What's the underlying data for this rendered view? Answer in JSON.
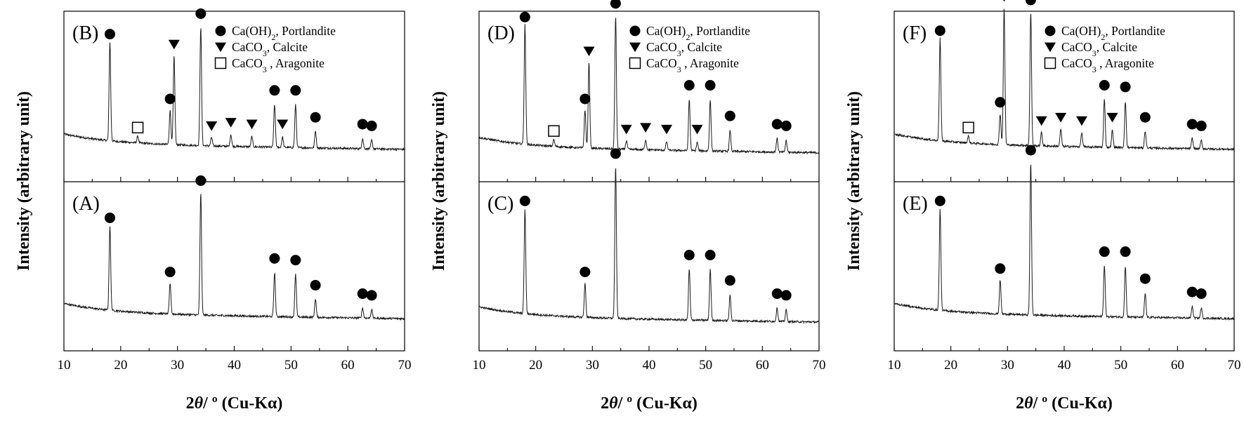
{
  "chart_data": [
    {
      "type": "line",
      "xlabel": "2θ/ º (Cu-Kα)",
      "ylabel": "Intensity (arbitrary unit)",
      "xlim": [
        10,
        70
      ],
      "x_ticks": [
        10,
        20,
        30,
        40,
        50,
        60,
        70
      ],
      "subplots": [
        {
          "label": "(B)",
          "legend": [
            {
              "marker": "circle",
              "text": "Ca(OH)",
              "sub": "2",
              "tail": ", Portlandite"
            },
            {
              "marker": "triangle",
              "text": "CaCO",
              "sub": "3",
              "tail": ", Calcite"
            },
            {
              "marker": "square",
              "text": "CaCO",
              "sub": "3",
              "tail": " , Aragonite"
            }
          ],
          "baseline": 0.22,
          "peaks": [
            {
              "x": 18.1,
              "h": 0.58,
              "phase": "portlandite"
            },
            {
              "x": 23.0,
              "h": 0.04,
              "phase": "aragonite"
            },
            {
              "x": 28.7,
              "h": 0.2,
              "phase": "portlandite"
            },
            {
              "x": 29.4,
              "h": 0.52,
              "phase": "calcite"
            },
            {
              "x": 34.1,
              "h": 0.7,
              "phase": "portlandite"
            },
            {
              "x": 36.0,
              "h": 0.05,
              "phase": "calcite"
            },
            {
              "x": 39.4,
              "h": 0.07,
              "phase": "calcite"
            },
            {
              "x": 43.1,
              "h": 0.06,
              "phase": "calcite"
            },
            {
              "x": 47.1,
              "h": 0.25,
              "phase": "portlandite"
            },
            {
              "x": 48.5,
              "h": 0.06,
              "phase": "calcite"
            },
            {
              "x": 50.8,
              "h": 0.25,
              "phase": "portlandite"
            },
            {
              "x": 54.3,
              "h": 0.1,
              "phase": "portlandite"
            },
            {
              "x": 62.6,
              "h": 0.06,
              "phase": "portlandite"
            },
            {
              "x": 64.2,
              "h": 0.05,
              "phase": "portlandite"
            }
          ]
        },
        {
          "label": "(A)",
          "legend": [],
          "baseline": 0.22,
          "peaks": [
            {
              "x": 18.1,
              "h": 0.5,
              "phase": "portlandite"
            },
            {
              "x": 28.7,
              "h": 0.18,
              "phase": "portlandite"
            },
            {
              "x": 34.1,
              "h": 0.72,
              "phase": "portlandite"
            },
            {
              "x": 47.1,
              "h": 0.26,
              "phase": "portlandite"
            },
            {
              "x": 50.8,
              "h": 0.25,
              "phase": "portlandite"
            },
            {
              "x": 54.3,
              "h": 0.11,
              "phase": "portlandite"
            },
            {
              "x": 62.6,
              "h": 0.06,
              "phase": "portlandite"
            },
            {
              "x": 64.2,
              "h": 0.05,
              "phase": "portlandite"
            }
          ]
        }
      ]
    },
    {
      "type": "line",
      "xlabel": "2θ/ º (Cu-Kα)",
      "ylabel": "Intensity (arbitrary unit)",
      "xlim": [
        10,
        70
      ],
      "x_ticks": [
        10,
        20,
        30,
        40,
        50,
        60,
        70
      ],
      "subplots": [
        {
          "label": "(D)",
          "legend": [
            {
              "marker": "circle",
              "text": "Ca(OH)",
              "sub": "2",
              "tail": ", Portlandite"
            },
            {
              "marker": "triangle",
              "text": "CaCO",
              "sub": "3",
              "tail": ", Calcite"
            },
            {
              "marker": "square",
              "text": "CaCO",
              "sub": "3",
              "tail": " , Aragonite"
            }
          ],
          "baseline": 0.2,
          "peaks": [
            {
              "x": 18.1,
              "h": 0.7,
              "phase": "portlandite"
            },
            {
              "x": 23.2,
              "h": 0.04,
              "phase": "aragonite"
            },
            {
              "x": 28.7,
              "h": 0.22,
              "phase": "portlandite"
            },
            {
              "x": 29.4,
              "h": 0.5,
              "phase": "calcite"
            },
            {
              "x": 34.1,
              "h": 0.78,
              "phase": "portlandite"
            },
            {
              "x": 36.0,
              "h": 0.05,
              "phase": "calcite"
            },
            {
              "x": 39.4,
              "h": 0.06,
              "phase": "calcite"
            },
            {
              "x": 43.1,
              "h": 0.05,
              "phase": "calcite"
            },
            {
              "x": 47.1,
              "h": 0.3,
              "phase": "portlandite"
            },
            {
              "x": 48.5,
              "h": 0.05,
              "phase": "calcite"
            },
            {
              "x": 50.8,
              "h": 0.3,
              "phase": "portlandite"
            },
            {
              "x": 54.3,
              "h": 0.12,
              "phase": "portlandite"
            },
            {
              "x": 62.6,
              "h": 0.08,
              "phase": "portlandite"
            },
            {
              "x": 64.2,
              "h": 0.07,
              "phase": "portlandite"
            }
          ]
        },
        {
          "label": "(C)",
          "legend": [],
          "baseline": 0.2,
          "peaks": [
            {
              "x": 18.1,
              "h": 0.62,
              "phase": "portlandite"
            },
            {
              "x": 28.7,
              "h": 0.2,
              "phase": "portlandite"
            },
            {
              "x": 34.1,
              "h": 0.9,
              "phase": "portlandite"
            },
            {
              "x": 47.1,
              "h": 0.3,
              "phase": "portlandite"
            },
            {
              "x": 50.8,
              "h": 0.3,
              "phase": "portlandite"
            },
            {
              "x": 54.3,
              "h": 0.15,
              "phase": "portlandite"
            },
            {
              "x": 62.6,
              "h": 0.08,
              "phase": "portlandite"
            },
            {
              "x": 64.2,
              "h": 0.07,
              "phase": "portlandite"
            }
          ]
        }
      ]
    },
    {
      "type": "line",
      "xlabel": "2θ/ º (Cu-Kα)",
      "ylabel": "Intensity (arbitrary unit)",
      "xlim": [
        10,
        70
      ],
      "x_ticks": [
        10,
        20,
        30,
        40,
        50,
        60,
        70
      ],
      "subplots": [
        {
          "label": "(F)",
          "legend": [
            {
              "marker": "circle",
              "text": "Ca(OH)",
              "sub": "2",
              "tail": ", Portlandite"
            },
            {
              "marker": "triangle",
              "text": "CaCO",
              "sub": "3",
              "tail": ", Calcite"
            },
            {
              "marker": "square",
              "text": "CaCO",
              "sub": "3",
              "tail": " , Aragonite"
            }
          ],
          "baseline": 0.22,
          "peaks": [
            {
              "x": 18.1,
              "h": 0.6,
              "phase": "portlandite"
            },
            {
              "x": 23.1,
              "h": 0.04,
              "phase": "aragonite"
            },
            {
              "x": 28.7,
              "h": 0.18,
              "phase": "portlandite"
            },
            {
              "x": 29.4,
              "h": 0.8,
              "phase": "calcite"
            },
            {
              "x": 34.1,
              "h": 0.78,
              "phase": "portlandite"
            },
            {
              "x": 36.0,
              "h": 0.08,
              "phase": "calcite"
            },
            {
              "x": 39.4,
              "h": 0.1,
              "phase": "calcite"
            },
            {
              "x": 43.1,
              "h": 0.08,
              "phase": "calcite"
            },
            {
              "x": 47.1,
              "h": 0.28,
              "phase": "portlandite"
            },
            {
              "x": 48.5,
              "h": 0.1,
              "phase": "calcite"
            },
            {
              "x": 50.8,
              "h": 0.27,
              "phase": "portlandite"
            },
            {
              "x": 54.3,
              "h": 0.1,
              "phase": "portlandite"
            },
            {
              "x": 62.6,
              "h": 0.06,
              "phase": "portlandite"
            },
            {
              "x": 64.2,
              "h": 0.05,
              "phase": "portlandite"
            }
          ]
        },
        {
          "label": "(E)",
          "legend": [],
          "baseline": 0.22,
          "peaks": [
            {
              "x": 18.1,
              "h": 0.6,
              "phase": "portlandite"
            },
            {
              "x": 28.7,
              "h": 0.2,
              "phase": "portlandite"
            },
            {
              "x": 34.1,
              "h": 0.9,
              "phase": "portlandite"
            },
            {
              "x": 47.1,
              "h": 0.3,
              "phase": "portlandite"
            },
            {
              "x": 50.8,
              "h": 0.3,
              "phase": "portlandite"
            },
            {
              "x": 54.3,
              "h": 0.14,
              "phase": "portlandite"
            },
            {
              "x": 62.6,
              "h": 0.07,
              "phase": "portlandite"
            },
            {
              "x": 64.2,
              "h": 0.06,
              "phase": "portlandite"
            }
          ]
        }
      ]
    }
  ]
}
